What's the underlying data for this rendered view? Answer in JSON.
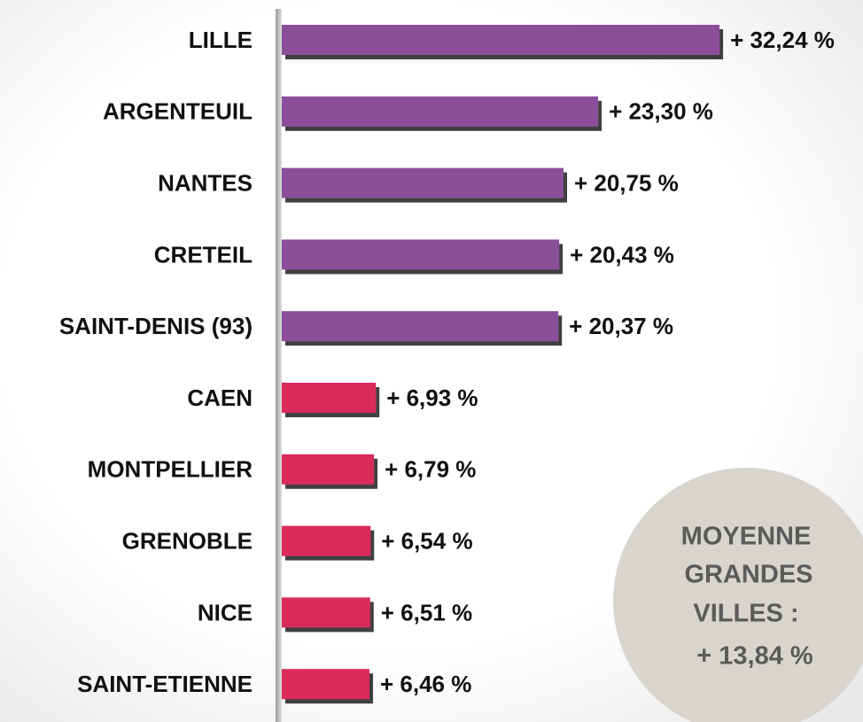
{
  "chart_data": {
    "type": "bar",
    "orientation": "horizontal",
    "categories": [
      "LILLE",
      "ARGENTEUIL",
      "NANTES",
      "CRETEIL",
      "SAINT-DENIS (93)",
      "CAEN",
      "MONTPELLIER",
      "GRENOBLE",
      "NICE",
      "SAINT-ETIENNE"
    ],
    "values": [
      32.24,
      23.3,
      20.75,
      20.43,
      20.37,
      6.93,
      6.79,
      6.54,
      6.51,
      6.46
    ],
    "value_labels": [
      "+ 32,24 %",
      "+ 23,30 %",
      "+ 20,75 %",
      "+ 20,43 %",
      "+ 20,37 %",
      "+ 6,93 %",
      "+ 6,79 %",
      "+ 6,54 %",
      "+ 6,51 %",
      "+ 6,46 %"
    ],
    "colors": [
      "#8b4f9a",
      "#8b4f9a",
      "#8b4f9a",
      "#8b4f9a",
      "#8b4f9a",
      "#d92c5a",
      "#d92c5a",
      "#d92c5a",
      "#d92c5a",
      "#d92c5a"
    ],
    "xlim": [
      0,
      40
    ],
    "annotation": [
      "MOYENNE",
      "GRANDES",
      "VILLES :",
      "+ 13,84 %"
    ]
  }
}
